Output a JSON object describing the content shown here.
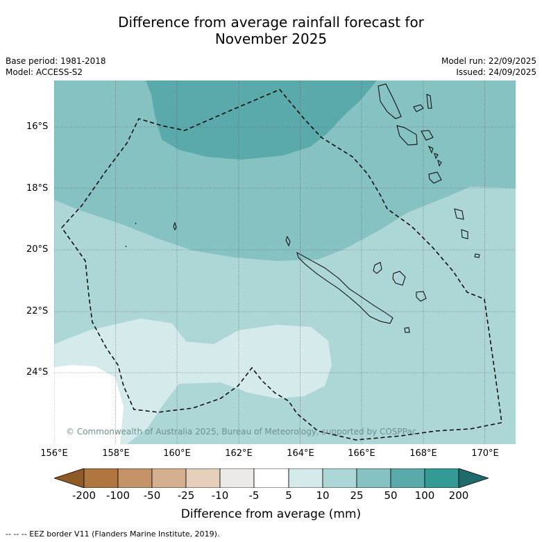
{
  "title_line1": "Difference from average rainfall forecast for",
  "title_line2": "November 2025",
  "meta_left": [
    "Base period: 1981-2018",
    "Model: ACCESS-S2"
  ],
  "meta_right": [
    "Model run: 22/09/2025",
    "Issued: 24/09/2025"
  ],
  "y_ticks": [
    "16°S",
    "18°S",
    "20°S",
    "22°S",
    "24°S"
  ],
  "x_ticks": [
    "156°E",
    "158°E",
    "160°E",
    "162°E",
    "164°E",
    "166°E",
    "168°E",
    "170°E"
  ],
  "copyright": "© Commonwealth of Australia 2025, Bureau of Meteorology, supported by COSPPac",
  "colorbar": {
    "labels": [
      "-200",
      "-100",
      "-50",
      "-25",
      "-10",
      "-5",
      "5",
      "10",
      "25",
      "50",
      "100",
      "200"
    ],
    "colors": [
      "#8f5a26",
      "#b0763f",
      "#c49468",
      "#d4b090",
      "#e6d0bc",
      "#ede9e6",
      "#ffffff",
      "#d5eaea",
      "#add6d6",
      "#86c2c2",
      "#5aa9ab",
      "#339a96",
      "#1f6b6a"
    ],
    "title": "Difference from average (mm)"
  },
  "footnote": "--  --  -- EEZ border V11 (Flanders Marine Institute, 2019)."
}
